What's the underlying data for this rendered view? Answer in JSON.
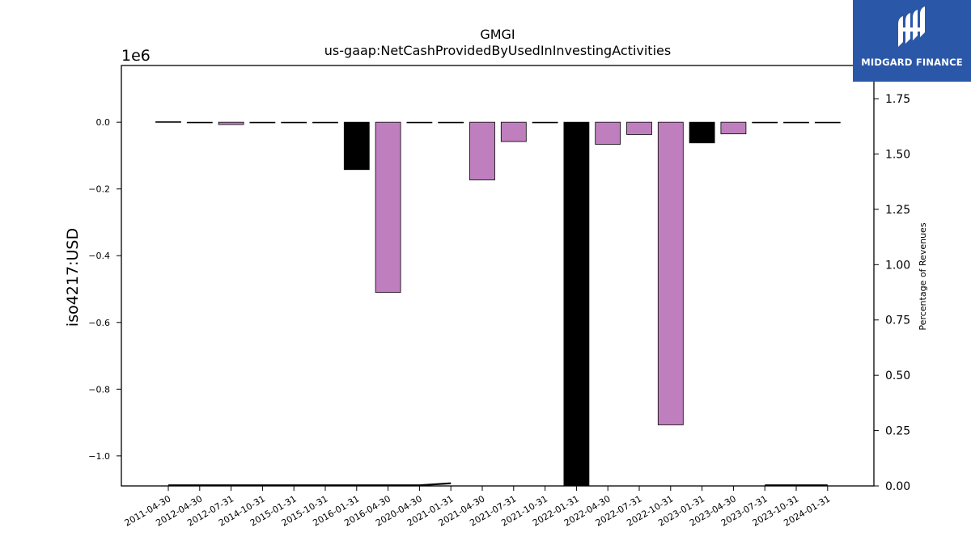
{
  "chart_data": {
    "type": "bar",
    "title": "GMGI",
    "subtitle": "us-gaap:NetCashProvidedByUsedInInvestingActivities",
    "ylabel": "iso4217:USD",
    "y_offset_label": "1e6",
    "y2label": "Percentage of Revenues",
    "categories": [
      "2011-04-30",
      "2012-04-30",
      "2012-07-31",
      "2014-10-31",
      "2015-01-31",
      "2015-10-31",
      "2016-01-31",
      "2016-04-30",
      "2020-04-30",
      "2021-01-31",
      "2021-04-30",
      "2021-07-31",
      "2021-10-31",
      "2022-01-31",
      "2022-04-30",
      "2022-07-31",
      "2022-10-31",
      "2023-01-31",
      "2023-04-30",
      "2023-07-31",
      "2023-10-31",
      "2024-01-31"
    ],
    "values": [
      1500,
      -1000,
      -7000,
      -1500,
      -1500,
      -1500,
      -142000,
      -510000,
      -1000,
      -1000,
      -173000,
      -58000,
      -1000,
      -1110000,
      -66000,
      -37000,
      -907000,
      -62000,
      -35000,
      -1000,
      -1500,
      -1000
    ],
    "bar_colors": [
      "#000000",
      "#bf7fbf",
      "#bf7fbf",
      "#bf7fbf",
      "#bf7fbf",
      "#bf7fbf",
      "#000000",
      "#bf7fbf",
      "#bf7fbf",
      "#bf7fbf",
      "#bf7fbf",
      "#bf7fbf",
      "#bf7fbf",
      "#000000",
      "#bf7fbf",
      "#bf7fbf",
      "#bf7fbf",
      "#000000",
      "#bf7fbf",
      "#bf7fbf",
      "#bf7fbf",
      "#bf7fbf"
    ],
    "pct_of_revenues": [
      0.0,
      0.0,
      0.0,
      0.0,
      0.0,
      0.0,
      0.0,
      0.0,
      0.0,
      0.012,
      null,
      null,
      0.0,
      null,
      null,
      null,
      null,
      null,
      null,
      0.002,
      0.0,
      0.0
    ],
    "ylim": [
      -1090000,
      170000
    ],
    "yticks": [
      0.0,
      -0.2,
      -0.4,
      -0.6,
      -0.8,
      -1.0
    ],
    "y2lim": [
      0,
      1.9
    ],
    "y2ticks": [
      "0.00",
      "0.25",
      "0.50",
      "0.75",
      "1.00",
      "1.25",
      "1.50",
      "1.75"
    ],
    "grid": false,
    "legend": "none"
  },
  "logo": {
    "text": "MIDGARD FINANCE",
    "background": "#2b57a8"
  }
}
